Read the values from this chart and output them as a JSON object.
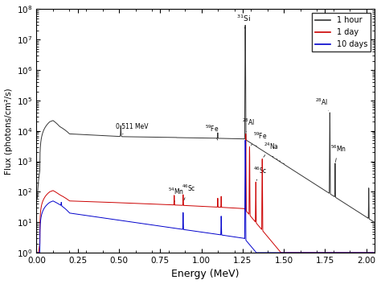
{
  "xlabel": "Energy (MeV)",
  "ylabel": "Flux (photons/cm²/s)",
  "xlim": [
    0.0,
    2.05
  ],
  "legend_labels": [
    "1 hour",
    "1 day",
    "10 days"
  ],
  "legend_colors": [
    "#333333",
    "#cc0000",
    "#0000cc"
  ],
  "background_color": "#ffffff"
}
